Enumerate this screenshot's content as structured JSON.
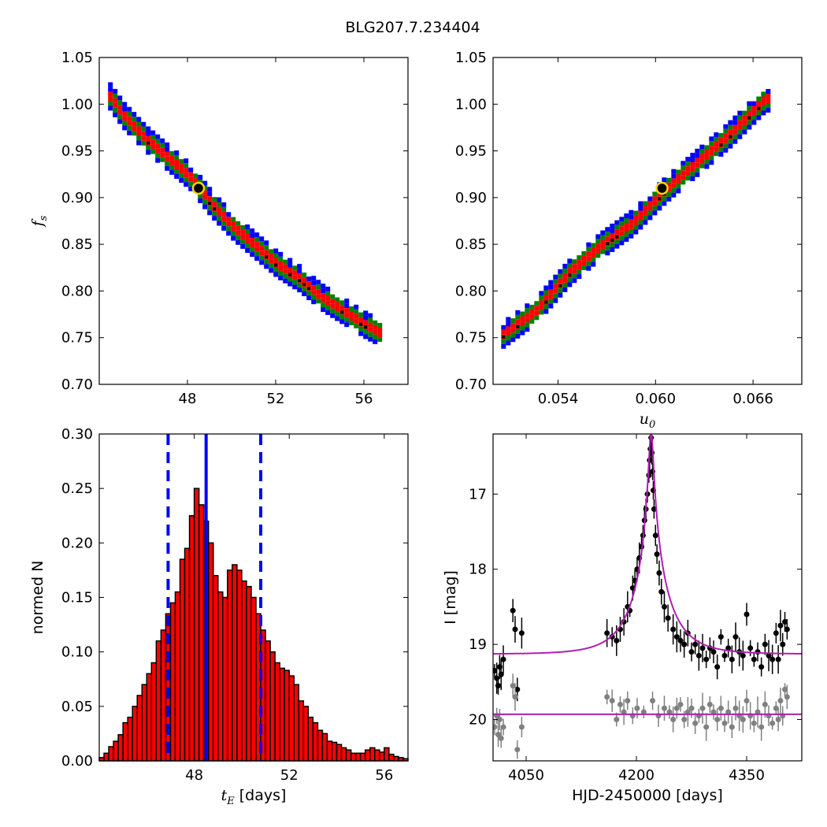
{
  "figure_title": "BLG207.7.234404",
  "colors": {
    "blue": "#0000ff",
    "green": "#008000",
    "red": "#ff0000",
    "black": "#000000",
    "yellow": "#ffd700",
    "magenta": "#b020b0",
    "gray": "#808080"
  },
  "chart_data": [
    {
      "type": "heatmap",
      "panel": "top-left",
      "xlabel": "",
      "ylabel": "f_s",
      "xlim": [
        44,
        58
      ],
      "ylim": [
        0.7,
        1.05
      ],
      "xticks": [
        48,
        52,
        56
      ],
      "xtick_labels": [
        "48",
        "52",
        "56"
      ],
      "yticks": [
        0.7,
        0.75,
        0.8,
        0.85,
        0.9,
        0.95,
        1.0,
        1.05
      ],
      "ytick_labels": [
        "0.70",
        "0.75",
        "0.80",
        "0.85",
        "0.90",
        "0.95",
        "1.00",
        "1.05"
      ],
      "ridge_points": [
        [
          44.4,
          1.01
        ],
        [
          45.0,
          0.99
        ],
        [
          46.0,
          0.965
        ],
        [
          47.0,
          0.945
        ],
        [
          48.0,
          0.925
        ],
        [
          49.0,
          0.895
        ],
        [
          50.0,
          0.87
        ],
        [
          51.0,
          0.85
        ],
        [
          52.0,
          0.83
        ],
        [
          53.0,
          0.815
        ],
        [
          54.0,
          0.795
        ],
        [
          55.0,
          0.78
        ],
        [
          56.0,
          0.765
        ],
        [
          56.8,
          0.755
        ]
      ],
      "best_fit": [
        48.5,
        0.91
      ]
    },
    {
      "type": "heatmap",
      "panel": "top-right",
      "xlabel": "u_0",
      "ylabel": "",
      "xlim": [
        0.05,
        0.069
      ],
      "ylim": [
        0.7,
        1.05
      ],
      "xticks": [
        0.054,
        0.06,
        0.066
      ],
      "xtick_labels": [
        "0.054",
        "0.060",
        "0.066"
      ],
      "yticks": [
        0.7,
        0.75,
        0.8,
        0.85,
        0.9,
        0.95,
        1.0,
        1.05
      ],
      "ytick_labels": [
        "0.70",
        "0.75",
        "0.80",
        "0.85",
        "0.90",
        "0.95",
        "1.00",
        "1.05"
      ],
      "ridge_points": [
        [
          0.0505,
          0.755
        ],
        [
          0.0525,
          0.78
        ],
        [
          0.0545,
          0.82
        ],
        [
          0.0565,
          0.85
        ],
        [
          0.0585,
          0.875
        ],
        [
          0.0605,
          0.91
        ],
        [
          0.0625,
          0.94
        ],
        [
          0.0645,
          0.97
        ],
        [
          0.0665,
          1.005
        ],
        [
          0.067,
          1.01
        ]
      ],
      "best_fit": [
        0.0604,
        0.91
      ]
    },
    {
      "type": "bar",
      "panel": "bottom-left",
      "xlabel": "t_E [days]",
      "ylabel": "normed N",
      "xlim": [
        44,
        57
      ],
      "ylim": [
        0.0,
        0.3
      ],
      "xticks": [
        48,
        52,
        56
      ],
      "xtick_labels": [
        "48",
        "52",
        "56"
      ],
      "yticks": [
        0.0,
        0.05,
        0.1,
        0.15,
        0.2,
        0.25,
        0.3
      ],
      "ytick_labels": [
        "0.00",
        "0.05",
        "0.10",
        "0.15",
        "0.20",
        "0.25",
        "0.30"
      ],
      "bin_start": 44.0,
      "bin_width": 0.2,
      "values": [
        0.003,
        0.007,
        0.013,
        0.018,
        0.024,
        0.035,
        0.04,
        0.05,
        0.06,
        0.07,
        0.08,
        0.09,
        0.11,
        0.12,
        0.135,
        0.145,
        0.155,
        0.185,
        0.195,
        0.225,
        0.25,
        0.235,
        0.22,
        0.2,
        0.17,
        0.155,
        0.15,
        0.175,
        0.18,
        0.175,
        0.165,
        0.16,
        0.15,
        0.135,
        0.12,
        0.11,
        0.1,
        0.09,
        0.085,
        0.083,
        0.078,
        0.07,
        0.055,
        0.05,
        0.04,
        0.035,
        0.028,
        0.025,
        0.018,
        0.017,
        0.015,
        0.012,
        0.01,
        0.007,
        0.007,
        0.007,
        0.01,
        0.012,
        0.01,
        0.008,
        0.012,
        0.006,
        0.004,
        0.003,
        0.002
      ],
      "median_line": 48.5,
      "bound_lines": [
        46.9,
        50.8
      ]
    },
    {
      "type": "scatter",
      "panel": "bottom-right",
      "xlabel": "HJD-2450000 [days]",
      "ylabel": "I [mag]",
      "xlim": [
        4005,
        4425
      ],
      "ylim": [
        20.55,
        16.2
      ],
      "xticks": [
        4050,
        4200,
        4350
      ],
      "xtick_labels": [
        "4050",
        "4200",
        "4350"
      ],
      "yticks": [
        17,
        18,
        19,
        20
      ],
      "ytick_labels": [
        "17",
        "18",
        "19",
        "20"
      ],
      "model": {
        "baseline": 19.13,
        "t0": 4220,
        "tE": 48.5,
        "u0": 0.0604,
        "fs": 0.91
      },
      "residual_baseline": 19.93,
      "series": [
        {
          "role": "data",
          "points": [
            [
              4007,
              19.35
            ],
            [
              4010,
              19.45
            ],
            [
              4012,
              19.55
            ],
            [
              4014,
              19.3
            ],
            [
              4016,
              19.4
            ],
            [
              4019,
              19.2
            ],
            [
              4032,
              18.55
            ],
            [
              4035,
              18.8
            ],
            [
              4038,
              19.6
            ],
            [
              4044,
              18.85
            ],
            [
              4160,
              18.85
            ],
            [
              4167,
              18.9
            ],
            [
              4173,
              18.95
            ],
            [
              4178,
              18.8
            ],
            [
              4183,
              18.7
            ],
            [
              4188,
              18.5
            ],
            [
              4191,
              18.55
            ],
            [
              4195,
              18.25
            ],
            [
              4198,
              18.15
            ],
            [
              4201,
              18.0
            ],
            [
              4204,
              17.85
            ],
            [
              4207,
              17.7
            ],
            [
              4209,
              17.55
            ],
            [
              4211,
              17.35
            ],
            [
              4213,
              17.2
            ],
            [
              4215,
              17.0
            ],
            [
              4217,
              16.75
            ],
            [
              4218,
              16.55
            ],
            [
              4219,
              16.4
            ],
            [
              4220,
              16.25
            ],
            [
              4221,
              16.45
            ],
            [
              4222,
              16.7
            ],
            [
              4223,
              16.95
            ],
            [
              4224,
              17.2
            ],
            [
              4226,
              17.55
            ],
            [
              4228,
              17.8
            ],
            [
              4231,
              18.05
            ],
            [
              4234,
              18.3
            ],
            [
              4238,
              18.5
            ],
            [
              4243,
              18.65
            ],
            [
              4250,
              18.8
            ],
            [
              4255,
              18.9
            ],
            [
              4260,
              18.95
            ],
            [
              4265,
              19.0
            ],
            [
              4270,
              18.85
            ],
            [
              4275,
              19.1
            ],
            [
              4280,
              19.0
            ],
            [
              4285,
              19.15
            ],
            [
              4290,
              19.05
            ],
            [
              4295,
              19.2
            ],
            [
              4300,
              19.05
            ],
            [
              4305,
              19.1
            ],
            [
              4310,
              19.3
            ],
            [
              4315,
              18.9
            ],
            [
              4320,
              19.15
            ],
            [
              4325,
              19.05
            ],
            [
              4330,
              19.2
            ],
            [
              4335,
              18.9
            ],
            [
              4340,
              19.1
            ],
            [
              4345,
              19.15
            ],
            [
              4350,
              18.6
            ],
            [
              4355,
              19.05
            ],
            [
              4360,
              19.2
            ],
            [
              4365,
              19.1
            ],
            [
              4370,
              19.3
            ],
            [
              4375,
              19.0
            ],
            [
              4380,
              19.15
            ],
            [
              4385,
              19.2
            ],
            [
              4390,
              18.85
            ],
            [
              4393,
              19.2
            ],
            [
              4396,
              18.75
            ],
            [
              4399,
              19.0
            ],
            [
              4402,
              18.7
            ],
            [
              4405,
              18.8
            ]
          ]
        },
        {
          "role": "residuals",
          "points": [
            [
              4007,
              20.1
            ],
            [
              4010,
              19.95
            ],
            [
              4012,
              20.2
            ],
            [
              4014,
              20.0
            ],
            [
              4016,
              20.25
            ],
            [
              4019,
              20.1
            ],
            [
              4032,
              19.55
            ],
            [
              4035,
              19.7
            ],
            [
              4038,
              20.4
            ],
            [
              4044,
              20.1
            ],
            [
              4160,
              19.7
            ],
            [
              4167,
              19.75
            ],
            [
              4173,
              20.0
            ],
            [
              4178,
              19.8
            ],
            [
              4183,
              19.9
            ],
            [
              4188,
              19.75
            ],
            [
              4195,
              19.95
            ],
            [
              4201,
              19.85
            ],
            [
              4210,
              19.9
            ],
            [
              4222,
              19.75
            ],
            [
              4230,
              19.95
            ],
            [
              4238,
              19.85
            ],
            [
              4245,
              19.9
            ],
            [
              4250,
              20.0
            ],
            [
              4255,
              19.85
            ],
            [
              4260,
              19.8
            ],
            [
              4265,
              20.0
            ],
            [
              4270,
              19.9
            ],
            [
              4275,
              19.85
            ],
            [
              4280,
              20.05
            ],
            [
              4285,
              19.95
            ],
            [
              4290,
              19.85
            ],
            [
              4295,
              20.1
            ],
            [
              4300,
              19.8
            ],
            [
              4305,
              19.9
            ],
            [
              4310,
              20.0
            ],
            [
              4315,
              19.85
            ],
            [
              4320,
              20.05
            ],
            [
              4325,
              19.9
            ],
            [
              4330,
              20.1
            ],
            [
              4335,
              19.85
            ],
            [
              4340,
              19.95
            ],
            [
              4345,
              20.0
            ],
            [
              4350,
              19.75
            ],
            [
              4355,
              19.95
            ],
            [
              4360,
              20.05
            ],
            [
              4365,
              19.9
            ],
            [
              4370,
              20.1
            ],
            [
              4375,
              19.8
            ],
            [
              4380,
              19.95
            ],
            [
              4385,
              20.05
            ],
            [
              4390,
              19.85
            ],
            [
              4393,
              20.0
            ],
            [
              4396,
              19.75
            ],
            [
              4399,
              19.95
            ],
            [
              4402,
              19.6
            ],
            [
              4405,
              19.7
            ]
          ]
        }
      ]
    }
  ]
}
